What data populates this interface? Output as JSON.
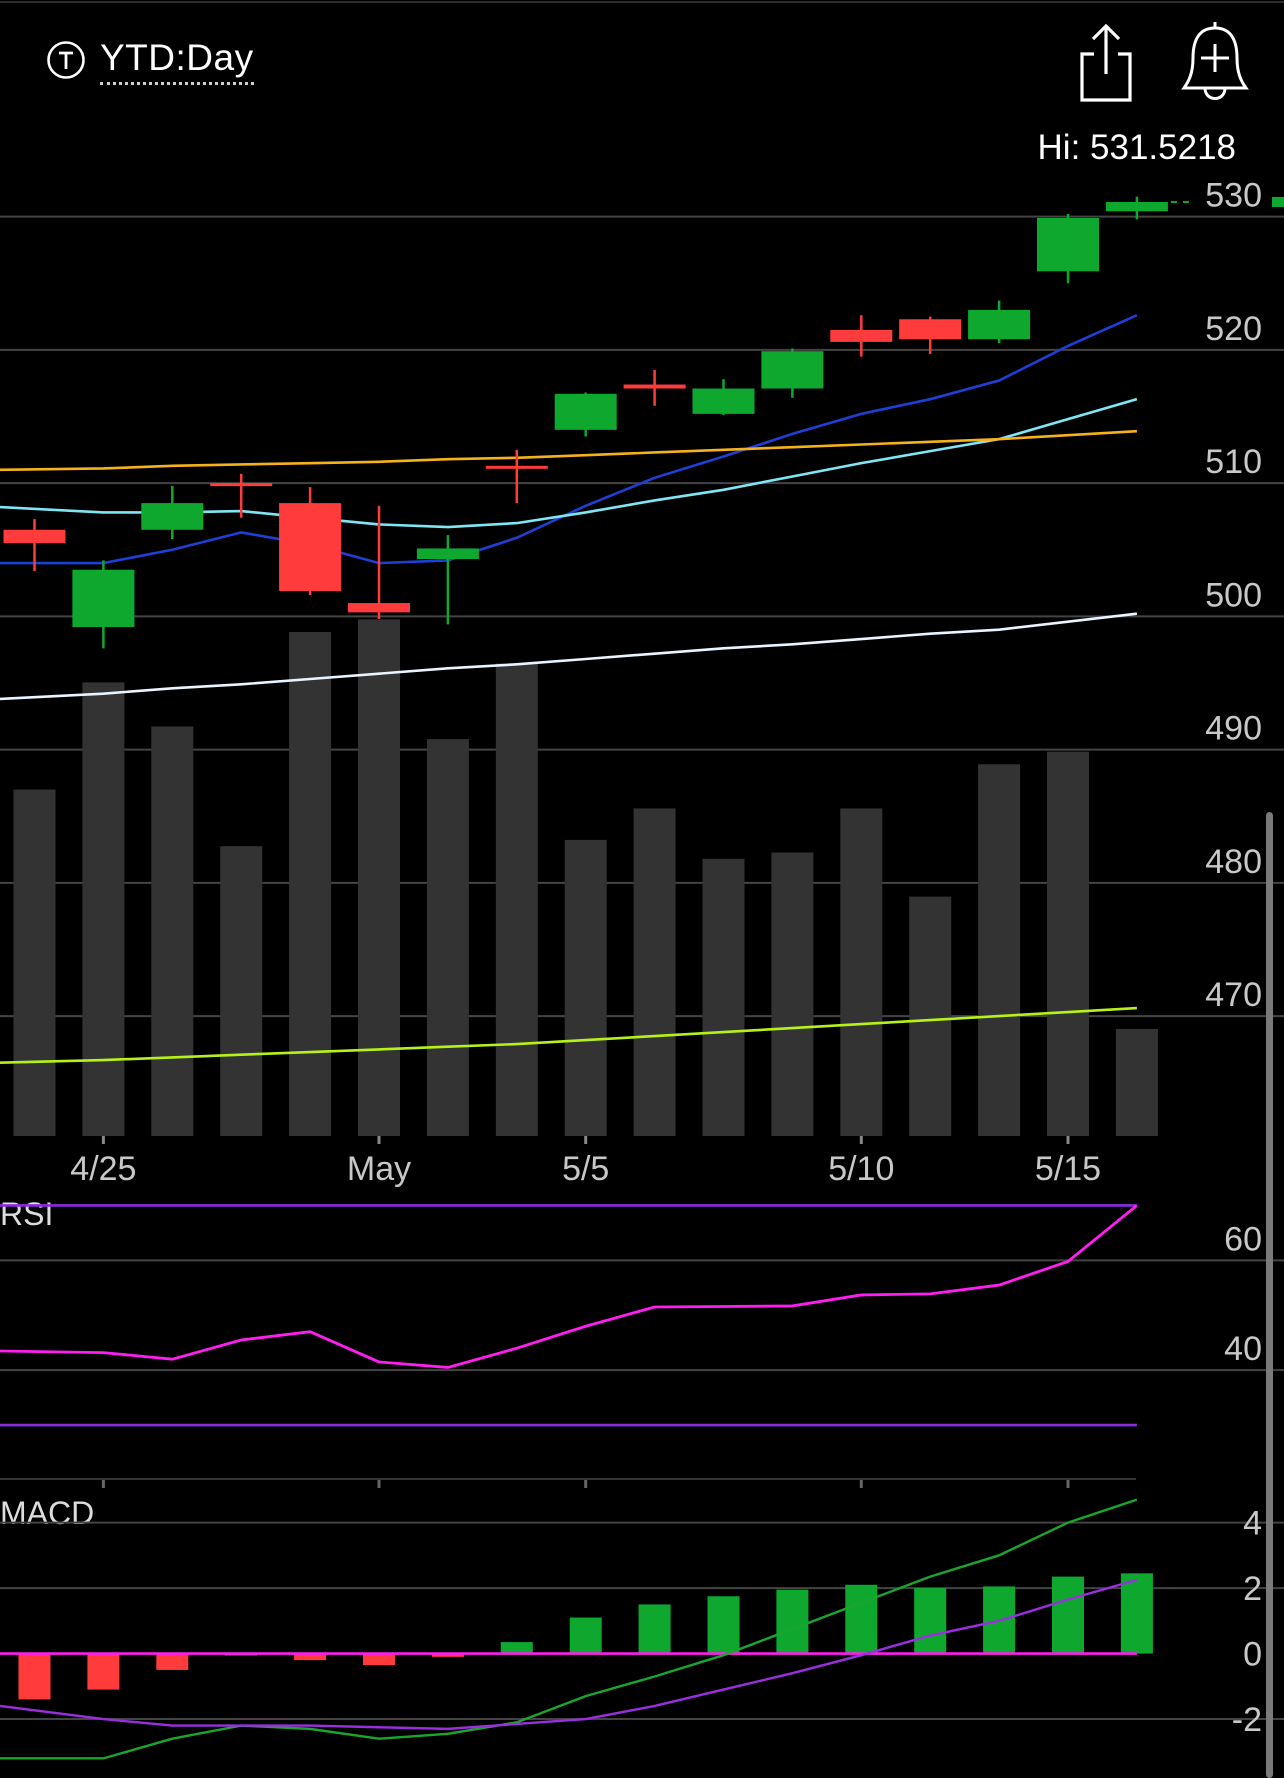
{
  "header": {
    "range_label": "YTD:Day",
    "range_icon": "circle-t-icon",
    "share_icon": "share-icon",
    "alert_icon": "add-alert-bell-icon"
  },
  "hi_label": "Hi: 531.5218",
  "colors": {
    "up": "#0ea82f",
    "down": "#ff3b3b",
    "volume": "#333333",
    "sma_blue": "#1f3fd6",
    "sma_cyan": "#7fe6f5",
    "sma_orange": "#f5b21c",
    "sma_white": "#e8f4ff",
    "sma_lime": "#b6f21a",
    "rsi_line": "#ff1ef0",
    "rsi_band": "#8a2be2",
    "macd_line": "#1aa52e",
    "macd_signal": "#9b2fe0",
    "macd_zero": "#ff1ef0"
  },
  "chart_data": [
    {
      "type": "candlestick",
      "ylim": [
        461,
        532
      ],
      "yticks": [
        "530",
        "520",
        "510",
        "500",
        "490",
        "480",
        "470"
      ],
      "xticks": [
        "4/25",
        "May",
        "5/5",
        "5/10",
        "5/15"
      ],
      "candles": [
        {
          "o": 506.5,
          "c": 505.5,
          "h": 507.3,
          "l": 503.4
        },
        {
          "o": 499.2,
          "c": 503.5,
          "h": 504.2,
          "l": 497.6
        },
        {
          "o": 506.5,
          "c": 508.5,
          "h": 509.8,
          "l": 505.8
        },
        {
          "o": 510.0,
          "c": 509.8,
          "h": 510.7,
          "l": 507.4
        },
        {
          "o": 508.5,
          "c": 501.9,
          "h": 509.7,
          "l": 501.6
        },
        {
          "o": 501.0,
          "c": 500.3,
          "h": 508.3,
          "l": 499.8
        },
        {
          "o": 504.3,
          "c": 505.1,
          "h": 506.1,
          "l": 499.4
        },
        {
          "o": 511.3,
          "c": 511.1,
          "h": 512.5,
          "l": 508.5
        },
        {
          "o": 514.0,
          "c": 516.7,
          "h": 516.8,
          "l": 513.5
        },
        {
          "o": 517.4,
          "c": 517.1,
          "h": 518.5,
          "l": 515.8
        },
        {
          "o": 515.2,
          "c": 517.1,
          "h": 517.8,
          "l": 515.1
        },
        {
          "o": 517.1,
          "c": 519.9,
          "h": 520.1,
          "l": 516.4
        },
        {
          "o": 521.5,
          "c": 520.6,
          "h": 522.6,
          "l": 519.5
        },
        {
          "o": 522.3,
          "c": 520.8,
          "h": 522.5,
          "l": 519.7
        },
        {
          "o": 520.8,
          "c": 523.0,
          "h": 523.7,
          "l": 520.5
        },
        {
          "o": 525.9,
          "c": 529.9,
          "h": 530.2,
          "l": 525.0
        },
        {
          "o": 530.4,
          "c": 531.1,
          "h": 531.5,
          "l": 529.8
        }
      ],
      "volume": [
        0.55,
        0.72,
        0.65,
        0.46,
        0.8,
        0.82,
        0.63,
        0.75,
        0.47,
        0.52,
        0.44,
        0.45,
        0.52,
        0.38,
        0.59,
        0.61,
        0.17
      ],
      "sma": [
        {
          "color_key": "sma_blue",
          "values": [
            504.0,
            504.0,
            505.0,
            506.3,
            505.4,
            504.0,
            504.2,
            505.9,
            508.3,
            510.4,
            512.0,
            513.7,
            515.2,
            516.3,
            517.7,
            520.3,
            522.6
          ]
        },
        {
          "color_key": "sma_cyan",
          "values": [
            508.2,
            507.8,
            507.8,
            507.9,
            507.4,
            506.9,
            506.7,
            507.0,
            507.8,
            508.7,
            509.5,
            510.5,
            511.5,
            512.4,
            513.3,
            514.8,
            516.3
          ]
        },
        {
          "color_key": "sma_orange",
          "values": [
            511.0,
            511.1,
            511.3,
            511.4,
            511.5,
            511.6,
            511.8,
            511.9,
            512.1,
            512.3,
            512.5,
            512.7,
            512.9,
            513.1,
            513.3,
            513.6,
            513.9
          ]
        },
        {
          "color_key": "sma_white",
          "values": [
            493.8,
            494.2,
            494.6,
            494.9,
            495.3,
            495.7,
            496.1,
            496.4,
            496.8,
            497.2,
            497.6,
            497.9,
            498.3,
            498.7,
            499.0,
            499.6,
            500.2
          ]
        },
        {
          "color_key": "sma_lime",
          "values": [
            466.5,
            466.7,
            466.9,
            467.1,
            467.3,
            467.5,
            467.7,
            467.9,
            468.2,
            468.5,
            468.8,
            469.1,
            469.4,
            469.7,
            470.0,
            470.3,
            470.6
          ]
        }
      ]
    },
    {
      "type": "line",
      "title": "RSI",
      "ylim": [
        20,
        75
      ],
      "yticks": [
        "60",
        "40"
      ],
      "bands": [
        70,
        30
      ],
      "values": [
        43.5,
        43.2,
        42.0,
        45.5,
        47.0,
        41.5,
        40.5,
        44.0,
        48.0,
        51.5,
        51.6,
        51.7,
        53.7,
        53.9,
        55.5,
        59.8,
        70.0
      ]
    },
    {
      "type": "bar",
      "title": "MACD",
      "ylim": [
        -3.8,
        5.3
      ],
      "yticks": [
        "4",
        "2",
        "0",
        "-2"
      ],
      "histogram": [
        -1.4,
        -1.1,
        -0.5,
        0.0,
        -0.2,
        -0.35,
        -0.1,
        0.35,
        1.1,
        1.5,
        1.75,
        1.95,
        2.1,
        2.0,
        2.05,
        2.35,
        2.45
      ],
      "macd": [
        -3.2,
        -3.2,
        -2.6,
        -2.2,
        -2.3,
        -2.6,
        -2.45,
        -2.1,
        -1.3,
        -0.7,
        -0.05,
        0.75,
        1.55,
        2.35,
        3.0,
        4.0,
        4.7
      ],
      "signal": [
        -1.6,
        -2.0,
        -2.2,
        -2.2,
        -2.2,
        -2.25,
        -2.3,
        -2.15,
        -2.0,
        -1.6,
        -1.1,
        -0.6,
        -0.05,
        0.55,
        1.0,
        1.65,
        2.25
      ]
    }
  ]
}
